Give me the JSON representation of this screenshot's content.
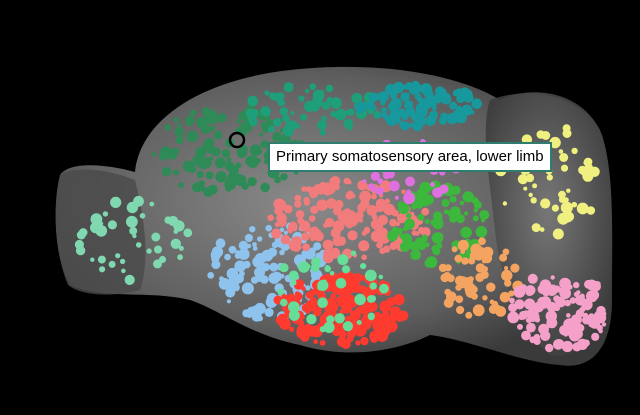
{
  "tooltip": {
    "label": "Primary somatosensory area, lower limb"
  }
}
